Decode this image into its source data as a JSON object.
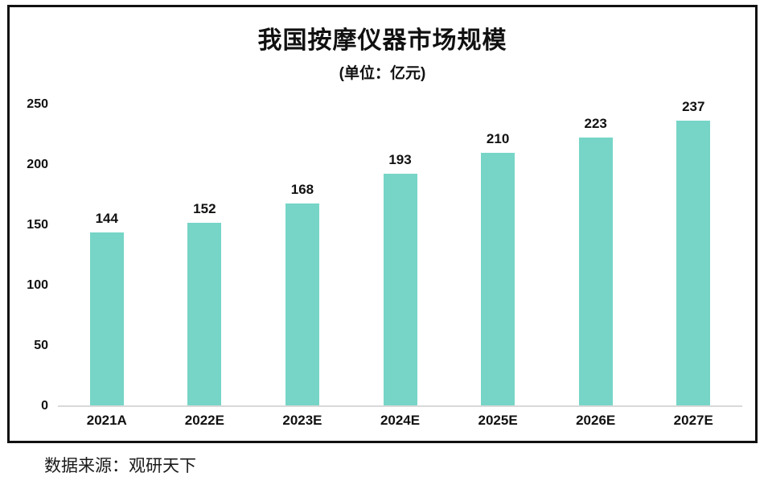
{
  "chart_data": {
    "type": "bar",
    "title": "我国按摩仪器市场规模",
    "subtitle": "(单位：亿元)",
    "categories": [
      "2021A",
      "2022E",
      "2023E",
      "2024E",
      "2025E",
      "2026E",
      "2027E"
    ],
    "values": [
      144,
      152,
      168,
      193,
      210,
      223,
      237
    ],
    "yticks": [
      0,
      50,
      100,
      150,
      200,
      250
    ],
    "ylim": [
      0,
      250
    ],
    "xlabel": "",
    "ylabel": "",
    "grid": false,
    "legend": "none",
    "value_labels": true,
    "bar_color": "#76d5c7"
  },
  "footer": {
    "source": "数据来源：观研天下"
  }
}
